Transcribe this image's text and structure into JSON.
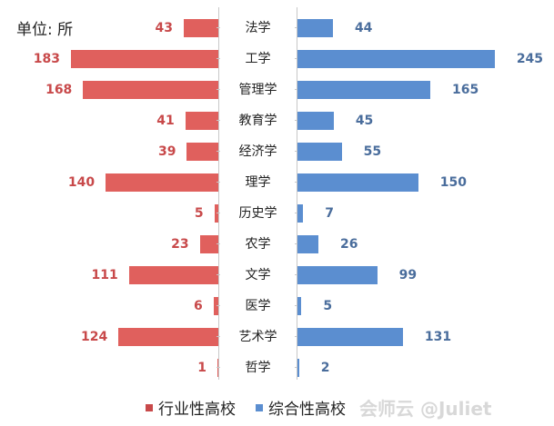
{
  "chart_data": {
    "type": "bar",
    "orientation": "horizontal-butterfly",
    "unit_label": "单位: 所",
    "categories": [
      "法学",
      "工学",
      "管理学",
      "教育学",
      "经济学",
      "理学",
      "历史学",
      "农学",
      "文学",
      "医学",
      "艺术学",
      "哲学"
    ],
    "series": [
      {
        "name": "行业性高校",
        "color": "#e0605d",
        "values": [
          43,
          183,
          168,
          41,
          39,
          140,
          5,
          23,
          111,
          6,
          124,
          1
        ]
      },
      {
        "name": "综合性高校",
        "color": "#5b8ed0",
        "values": [
          44,
          245,
          165,
          45,
          55,
          150,
          7,
          26,
          99,
          5,
          131,
          2
        ]
      }
    ],
    "legend_position": "bottom",
    "grid": false
  },
  "unit": "单位: 所",
  "legend": {
    "left": "行业性高校",
    "right": "综合性高校"
  },
  "watermark": "会师云 @Juliet"
}
